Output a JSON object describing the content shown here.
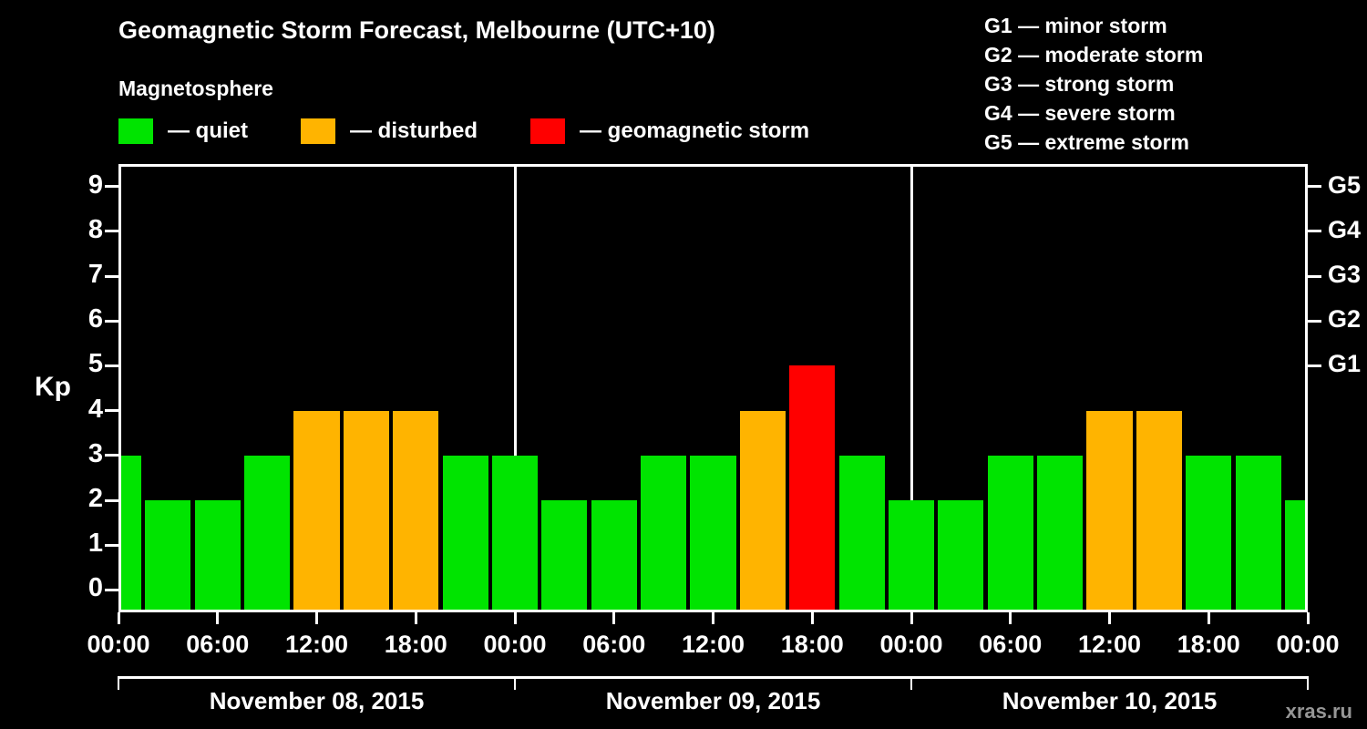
{
  "header": {
    "title": "Geomagnetic Storm Forecast, Melbourne (UTC+10)",
    "subtitle": "Magnetosphere"
  },
  "legend": {
    "items": [
      {
        "key": "quiet",
        "label": "— quiet"
      },
      {
        "key": "disturbed",
        "label": "— disturbed"
      },
      {
        "key": "storm",
        "label": "— geomagnetic storm"
      }
    ]
  },
  "g_scale": [
    "G1 — minor storm",
    "G2 — moderate storm",
    "G3 — strong storm",
    "G4 — severe storm",
    "G5 — extreme storm"
  ],
  "colors": {
    "quiet": "#00e400",
    "disturbed": "#ffb400",
    "storm": "#ff0000",
    "background": "#000000",
    "axis": "#ffffff",
    "watermark": "#969696"
  },
  "axis": {
    "ylabel": "Kp",
    "y_ticks": [
      0,
      1,
      2,
      3,
      4,
      5,
      6,
      7,
      8,
      9
    ],
    "right_axis": [
      {
        "label": "G1",
        "kp": 5
      },
      {
        "label": "G2",
        "kp": 6
      },
      {
        "label": "G3",
        "kp": 7
      },
      {
        "label": "G4",
        "kp": 8
      },
      {
        "label": "G5",
        "kp": 9
      }
    ],
    "x_tick_labels": [
      "00:00",
      "06:00",
      "12:00",
      "18:00",
      "00:00",
      "06:00",
      "12:00",
      "18:00",
      "00:00",
      "06:00",
      "12:00",
      "18:00",
      "00:00"
    ]
  },
  "days": [
    "November 08, 2015",
    "November 09, 2015",
    "November 10, 2015"
  ],
  "watermark": "xras.ru",
  "chart_data": {
    "type": "bar",
    "title": "Geomagnetic Storm Forecast, Melbourne (UTC+10)",
    "ylabel": "Kp",
    "ylim": [
      0,
      9
    ],
    "x_step_hours": 3,
    "values": [
      3,
      2,
      2,
      3,
      4,
      4,
      4,
      3,
      3,
      2,
      2,
      3,
      3,
      4,
      5,
      3,
      2,
      2,
      3,
      3,
      4,
      4,
      3,
      3,
      2
    ],
    "color_rule": {
      "quiet": "kp <= 3",
      "disturbed": "kp = 4",
      "storm": "kp >= 5"
    },
    "day_separator_slots": [
      8,
      16
    ],
    "slots_per_day": 8,
    "x_tick_every_slots": 2
  }
}
